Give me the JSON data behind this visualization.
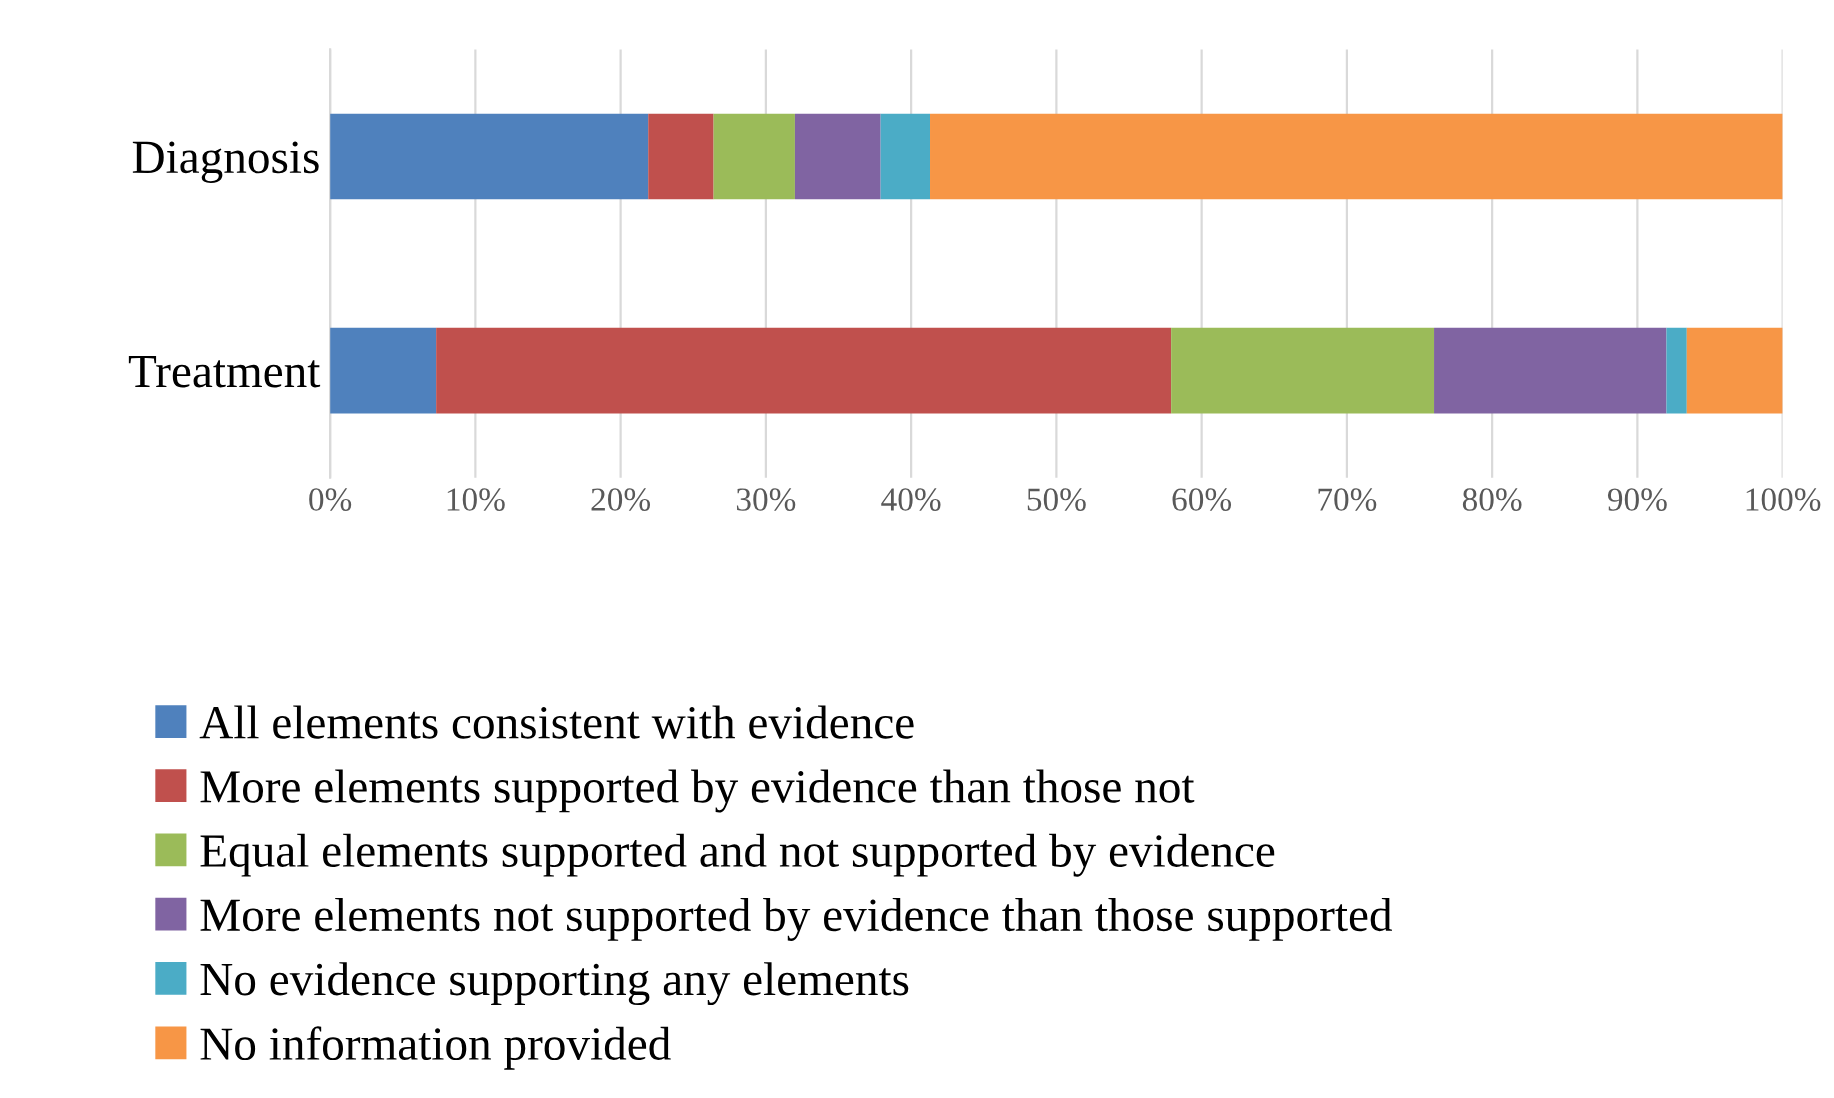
{
  "chart_data": {
    "type": "bar",
    "orientation": "horizontal",
    "stacked": true,
    "categories": [
      "Diagnosis",
      "Treatment"
    ],
    "series": [
      {
        "name": "All elements consistent with evidence",
        "color": "#4f81bd",
        "values": [
          21.9,
          7.3
        ]
      },
      {
        "name": "More elements supported by evidence than those not",
        "color": "#c0504d",
        "values": [
          4.5,
          50.6
        ]
      },
      {
        "name": "Equal elements supported and not supported by evidence",
        "color": "#9bbb59",
        "values": [
          5.6,
          18.1
        ]
      },
      {
        "name": "More elements not supported by evidence than those supported",
        "color": "#8064a2",
        "values": [
          5.9,
          16.0
        ]
      },
      {
        "name": "No evidence supporting any elements",
        "color": "#4bacc6",
        "values": [
          3.4,
          1.4
        ]
      },
      {
        "name": "No information provided",
        "color": "#f79646",
        "values": [
          58.7,
          6.6
        ]
      }
    ],
    "xlim": [
      0,
      100
    ],
    "xticks": [
      {
        "value": 0,
        "label": "0%"
      },
      {
        "value": 10,
        "label": "10%"
      },
      {
        "value": 20,
        "label": "20%"
      },
      {
        "value": 30,
        "label": "30%"
      },
      {
        "value": 40,
        "label": "40%"
      },
      {
        "value": 50,
        "label": "50%"
      },
      {
        "value": 60,
        "label": "60%"
      },
      {
        "value": 70,
        "label": "70%"
      },
      {
        "value": 80,
        "label": "80%"
      },
      {
        "value": 90,
        "label": "90%"
      },
      {
        "value": 100,
        "label": "100%"
      }
    ],
    "grid": "x",
    "legend": "bottom"
  }
}
